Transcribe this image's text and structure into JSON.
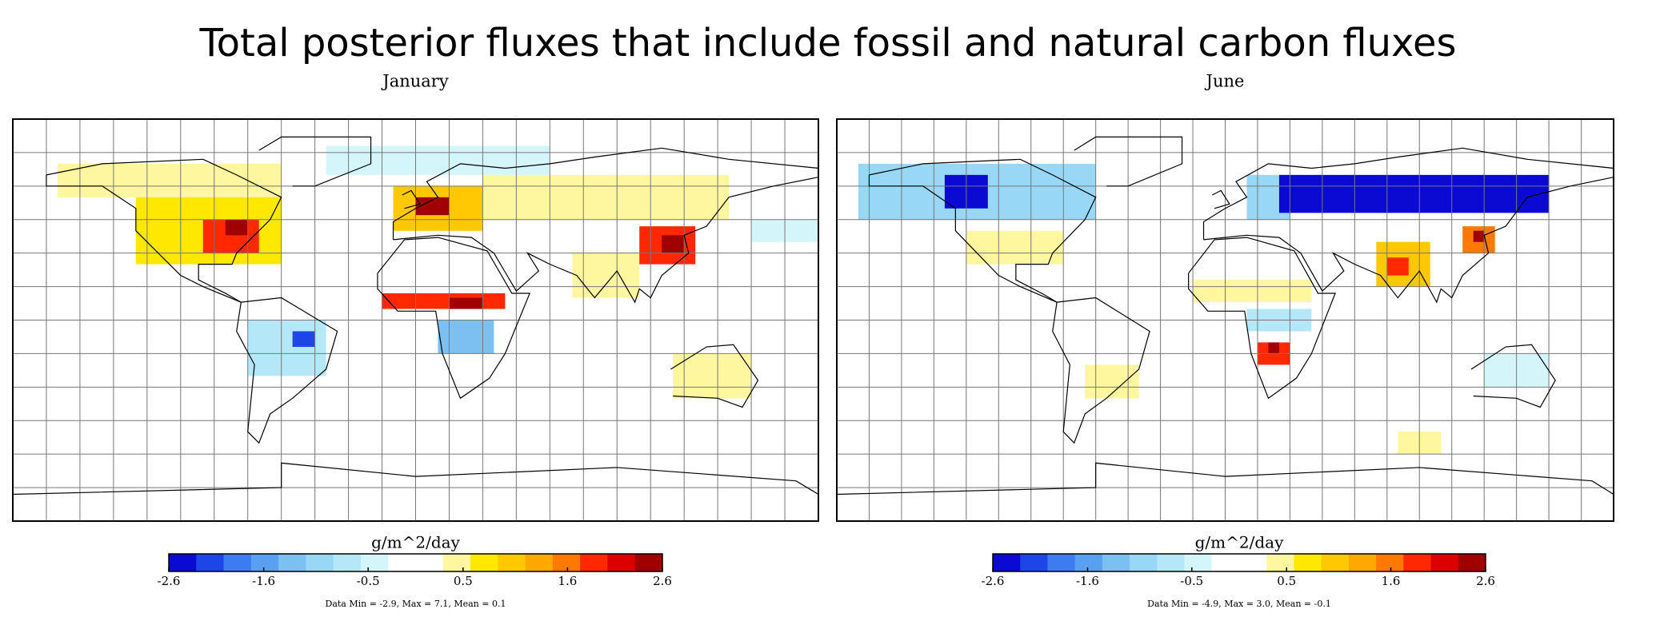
{
  "title": "Total posterior fluxes that include fossil and natural carbon fluxes",
  "colorbar": {
    "label": "g/m^2/day",
    "range": [
      -2.6,
      2.6
    ],
    "ticks": [
      -2.6,
      -1.6,
      -0.5,
      0.5,
      1.6,
      2.6
    ],
    "colors": [
      "#0a0ad2",
      "#1e46e6",
      "#3c7cf0",
      "#5aa0f0",
      "#7cc0f2",
      "#98d8f6",
      "#b4e8f8",
      "#d4f6fa",
      "#ffffff",
      "#ffffff",
      "#fff7a0",
      "#ffe800",
      "#ffc800",
      "#ffa800",
      "#ff7800",
      "#ff2800",
      "#dc0000",
      "#a00000"
    ]
  },
  "xlim": [
    -180,
    180
  ],
  "ylim": [
    -90,
    90
  ],
  "grid_step": 15,
  "panels": [
    {
      "title": "January",
      "note": "Data Min = -2.9, Max = 7.1, Mean = 0.1",
      "cells": [
        {
          "lon": [
            -160,
            -60
          ],
          "lat": [
            55,
            70
          ],
          "value": 0.3
        },
        {
          "lon": [
            -40,
            60
          ],
          "lat": [
            65,
            78
          ],
          "value": -0.3
        },
        {
          "lon": [
            -125,
            -60
          ],
          "lat": [
            25,
            55
          ],
          "value": 0.6
        },
        {
          "lon": [
            -95,
            -70
          ],
          "lat": [
            30,
            45
          ],
          "value": 2.0
        },
        {
          "lon": [
            -85,
            -75
          ],
          "lat": [
            38,
            45
          ],
          "value": 2.8
        },
        {
          "lon": [
            30,
            140
          ],
          "lat": [
            45,
            65
          ],
          "value": 0.4
        },
        {
          "lon": [
            -10,
            30
          ],
          "lat": [
            40,
            60
          ],
          "value": 1.0
        },
        {
          "lon": [
            0,
            15
          ],
          "lat": [
            47,
            55
          ],
          "value": 2.8
        },
        {
          "lon": [
            70,
            100
          ],
          "lat": [
            10,
            30
          ],
          "value": 0.5
        },
        {
          "lon": [
            100,
            125
          ],
          "lat": [
            25,
            42
          ],
          "value": 2.0
        },
        {
          "lon": [
            110,
            120
          ],
          "lat": [
            30,
            38
          ],
          "value": 2.8
        },
        {
          "lon": [
            150,
            180
          ],
          "lat": [
            35,
            45
          ],
          "value": -0.3
        },
        {
          "lon": [
            -15,
            40
          ],
          "lat": [
            5,
            12
          ],
          "value": 1.8
        },
        {
          "lon": [
            15,
            30
          ],
          "lat": [
            5,
            10
          ],
          "value": 2.6
        },
        {
          "lon": [
            10,
            35
          ],
          "lat": [
            -15,
            0
          ],
          "value": -1.2
        },
        {
          "lon": [
            -75,
            -40
          ],
          "lat": [
            -25,
            0
          ],
          "value": -0.6
        },
        {
          "lon": [
            -55,
            -45
          ],
          "lat": [
            -12,
            -5
          ],
          "value": -2.3
        },
        {
          "lon": [
            115,
            150
          ],
          "lat": [
            -35,
            -15
          ],
          "value": 0.4
        }
      ]
    },
    {
      "title": "June",
      "note": "Data Min = -4.9, Max = 3.0, Mean = -0.1",
      "cells": [
        {
          "lon": [
            -170,
            -60
          ],
          "lat": [
            45,
            70
          ],
          "value": -0.9
        },
        {
          "lon": [
            -130,
            -110
          ],
          "lat": [
            50,
            65
          ],
          "value": -2.5
        },
        {
          "lon": [
            10,
            30
          ],
          "lat": [
            45,
            65
          ],
          "value": -0.9
        },
        {
          "lon": [
            25,
            150
          ],
          "lat": [
            48,
            65
          ],
          "value": -2.5
        },
        {
          "lon": [
            -120,
            -75
          ],
          "lat": [
            25,
            40
          ],
          "value": 0.4
        },
        {
          "lon": [
            70,
            95
          ],
          "lat": [
            15,
            35
          ],
          "value": 1.0
        },
        {
          "lon": [
            75,
            85
          ],
          "lat": [
            20,
            28
          ],
          "value": 1.8
        },
        {
          "lon": [
            110,
            125
          ],
          "lat": [
            30,
            42
          ],
          "value": 1.5
        },
        {
          "lon": [
            115,
            120
          ],
          "lat": [
            35,
            40
          ],
          "value": 2.8
        },
        {
          "lon": [
            -15,
            40
          ],
          "lat": [
            8,
            18
          ],
          "value": 0.4
        },
        {
          "lon": [
            10,
            40
          ],
          "lat": [
            -5,
            5
          ],
          "value": -0.6
        },
        {
          "lon": [
            15,
            30
          ],
          "lat": [
            -20,
            -10
          ],
          "value": 1.8
        },
        {
          "lon": [
            20,
            25
          ],
          "lat": [
            -15,
            -10
          ],
          "value": 2.6
        },
        {
          "lon": [
            -65,
            -40
          ],
          "lat": [
            -35,
            -20
          ],
          "value": 0.5
        },
        {
          "lon": [
            120,
            150
          ],
          "lat": [
            -30,
            -15
          ],
          "value": -0.4
        },
        {
          "lon": [
            80,
            100
          ],
          "lat": [
            -60,
            -50
          ],
          "value": 0.4
        }
      ]
    }
  ]
}
